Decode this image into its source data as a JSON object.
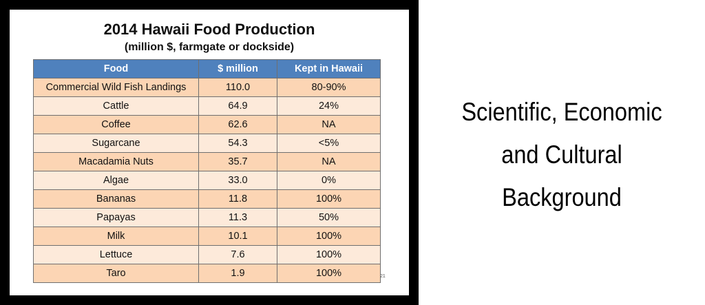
{
  "slide": {
    "title": "2014 Hawaii Food Production",
    "subtitle": "(million $, farmgate or dockside)",
    "slide_number": "21",
    "table": {
      "headers": [
        "Food",
        "$ million",
        "Kept in Hawaii"
      ],
      "rows": [
        [
          "Commercial Wild Fish Landings",
          "110.0",
          "80-90%"
        ],
        [
          "Cattle",
          "64.9",
          "24%"
        ],
        [
          "Coffee",
          "62.6",
          "NA"
        ],
        [
          "Sugarcane",
          "54.3",
          "<5%"
        ],
        [
          "Macadamia Nuts",
          "35.7",
          "NA"
        ],
        [
          "Algae",
          "33.0",
          "0%"
        ],
        [
          "Bananas",
          "11.8",
          "100%"
        ],
        [
          "Papayas",
          "11.3",
          "50%"
        ],
        [
          "Milk",
          "10.1",
          "100%"
        ],
        [
          "Lettuce",
          "7.6",
          "100%"
        ],
        [
          "Taro",
          "1.9",
          "100%"
        ]
      ]
    }
  },
  "side_panel": {
    "lines": [
      "Scientific, Economic",
      "and Cultural",
      "Background"
    ]
  },
  "colors": {
    "header_bg": "#4f81bd",
    "row_odd": "#fcd5b4",
    "row_even": "#fdeada",
    "frame": "#000000"
  }
}
